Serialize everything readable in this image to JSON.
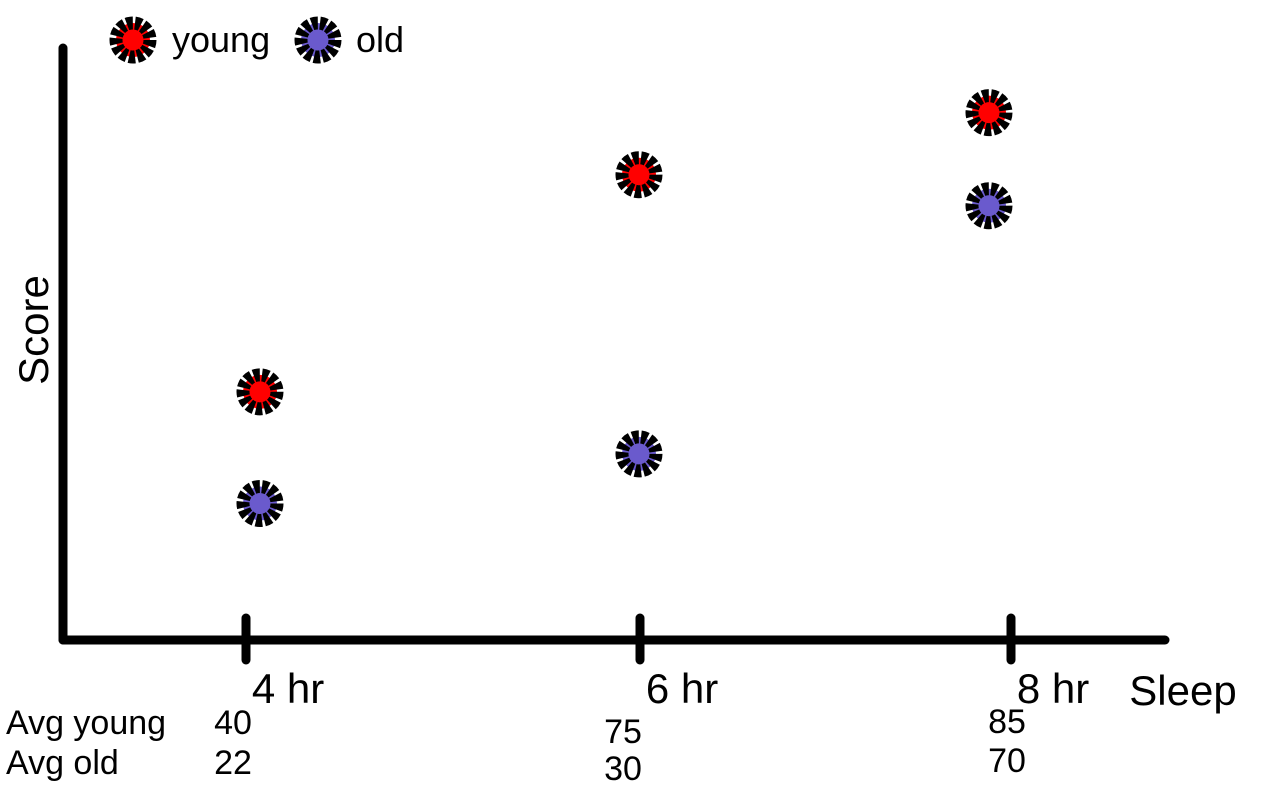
{
  "chart_data": {
    "type": "scatter",
    "xlabel": "Sleep",
    "ylabel": "Score",
    "categories": [
      "4 hr",
      "6 hr",
      "8 hr"
    ],
    "x": [
      4,
      6,
      8
    ],
    "ylim": [
      0,
      100
    ],
    "grid": false,
    "legend_position": "top-left",
    "series": [
      {
        "name": "young",
        "color": "#ff0000",
        "values": [
          40,
          75,
          85
        ]
      },
      {
        "name": "old",
        "color": "#6a5acd",
        "values": [
          22,
          30,
          70
        ]
      }
    ],
    "summary_rows": [
      {
        "label": "Avg young",
        "values": [
          "40",
          "75",
          "85"
        ]
      },
      {
        "label": "Avg old",
        "values": [
          "22",
          "30",
          "70"
        ]
      }
    ]
  }
}
